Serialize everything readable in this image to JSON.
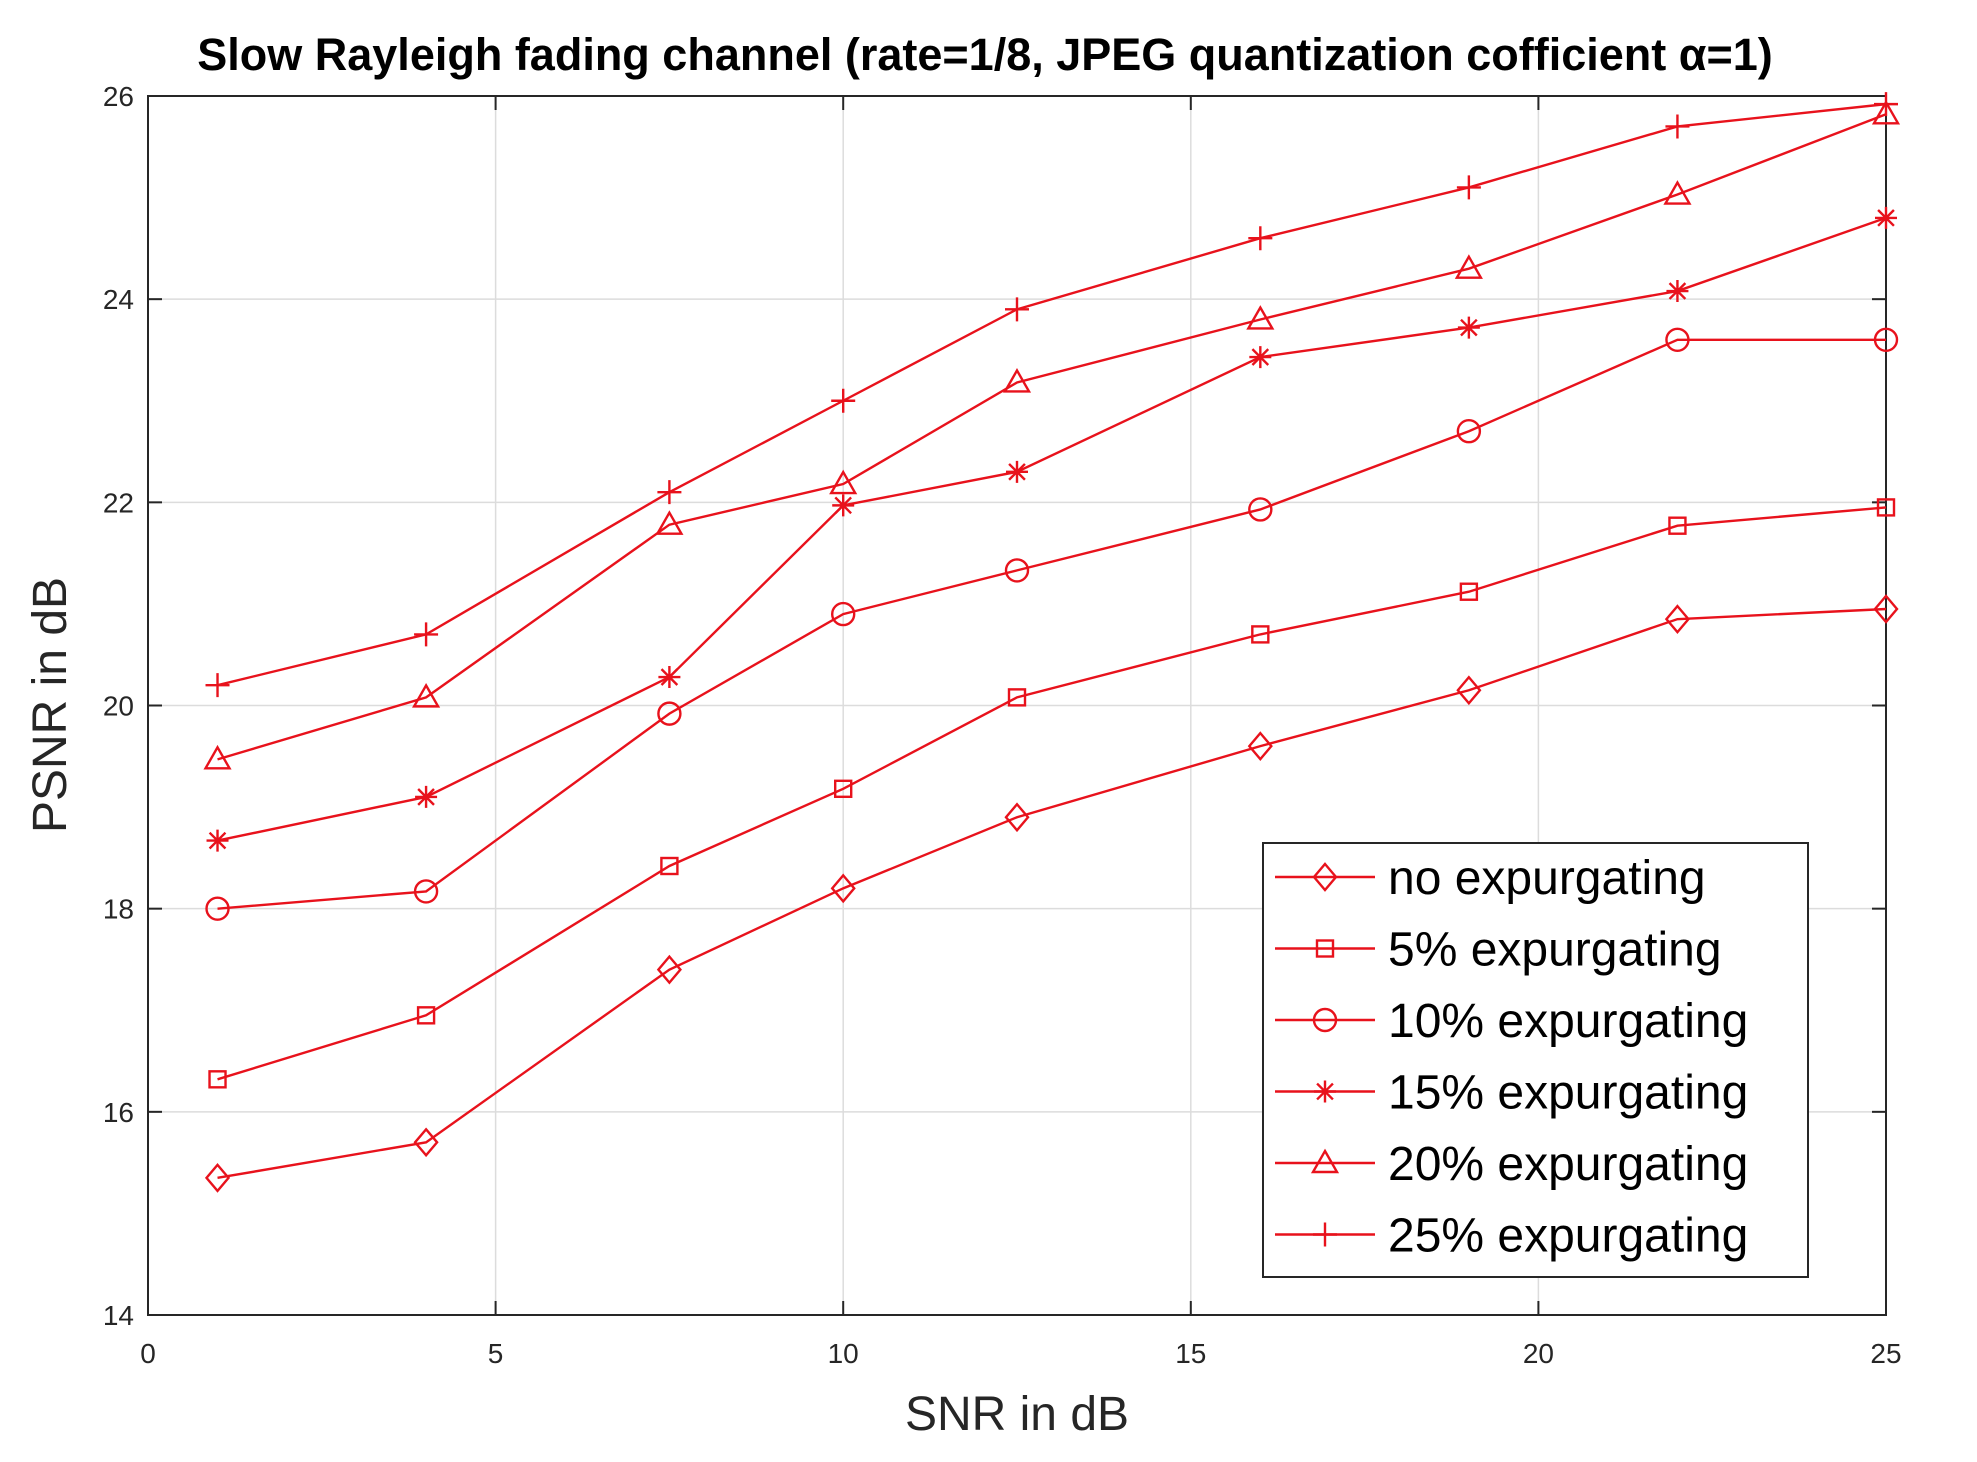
{
  "chart_data": {
    "type": "line",
    "title": "Slow Rayleigh fading channel (rate=1/8, JPEG quantization cofficient α=1)",
    "xlabel": "SNR in dB",
    "ylabel": "PSNR in dB",
    "xlim": [
      0,
      25
    ],
    "ylim": [
      14,
      26
    ],
    "xticks": [
      0,
      5,
      10,
      15,
      20,
      25
    ],
    "yticks": [
      14,
      16,
      18,
      20,
      22,
      24,
      26
    ],
    "grid": true,
    "legend_position": "bottom-right",
    "color": "#e8121c",
    "x": [
      1,
      4,
      7.5,
      10,
      12.5,
      16,
      19,
      22,
      25
    ],
    "series": [
      {
        "name": "no expurgating",
        "marker": "diamond",
        "values": [
          15.35,
          15.7,
          17.4,
          18.2,
          18.9,
          19.6,
          20.15,
          20.85,
          20.95
        ]
      },
      {
        "name": "5% expurgating",
        "marker": "square",
        "values": [
          16.32,
          16.95,
          18.42,
          19.18,
          20.08,
          20.7,
          21.12,
          21.77,
          21.95
        ]
      },
      {
        "name": "10% expurgating",
        "marker": "circle",
        "values": [
          18.0,
          18.17,
          19.92,
          20.9,
          21.33,
          21.93,
          22.7,
          23.6,
          23.6
        ]
      },
      {
        "name": "15% expurgating",
        "marker": "asterisk",
        "values": [
          18.67,
          19.1,
          20.28,
          21.97,
          22.3,
          23.43,
          23.72,
          24.08,
          24.8
        ]
      },
      {
        "name": "20% expurgating",
        "marker": "triangle",
        "values": [
          19.47,
          20.08,
          21.78,
          22.18,
          23.18,
          23.8,
          24.3,
          25.03,
          25.82
        ]
      },
      {
        "name": "25% expurgating",
        "marker": "plus",
        "values": [
          20.2,
          20.7,
          22.1,
          23.0,
          23.9,
          24.6,
          25.1,
          25.7,
          25.92
        ]
      }
    ]
  }
}
